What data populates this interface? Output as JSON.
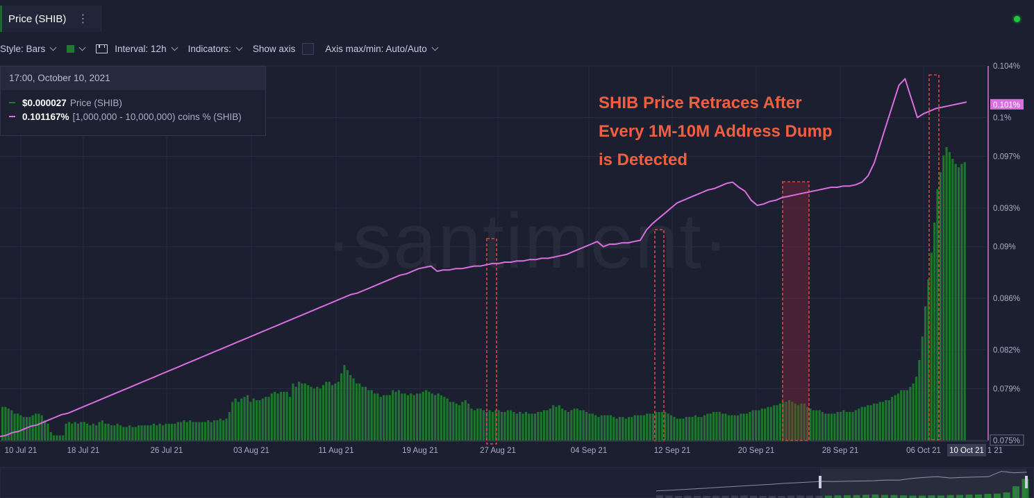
{
  "header": {
    "title": "Price (SHIB)",
    "menu_icon": "more-vertical-icon"
  },
  "toolbar": {
    "style_label": "Style: Bars",
    "interval_label": "Interval: 12h",
    "indicators_label": "Indicators:",
    "show_axis_label": "Show axis",
    "axis_label": "Axis max/min: Auto/Auto"
  },
  "tooltip": {
    "date": "17:00, October 10, 2021",
    "price_value": "$0.000027",
    "price_label": "Price (SHIB)",
    "holders_value": "0.101167%",
    "holders_label": "[1,000,000 - 10,000,000) coins % (SHIB)"
  },
  "annotation": {
    "line1": "SHIB Price Retraces After",
    "line2": "Every 1M-10M Address Dump",
    "line3": "is Detected"
  },
  "watermark": "·santiment·",
  "colors": {
    "background": "#1c1f30",
    "price_bars": "#1f7a2f",
    "holders_line": "#d96ee0",
    "annotation": "#f06040",
    "highlight_box": "#e0453a",
    "status": "#1ec93a"
  },
  "chart_data": {
    "type": "bar",
    "title": "Price (SHIB)",
    "x_tick_labels": [
      "10 Jul 21",
      "18 Jul 21",
      "26 Jul 21",
      "03 Aug 21",
      "11 Aug 21",
      "19 Aug 21",
      "27 Aug 21",
      "04 Sep 21",
      "12 Sep 21",
      "20 Sep 21",
      "28 Sep 21",
      "06 Oct 21",
      "10 Oct 21",
      "1 21"
    ],
    "right_axis": {
      "ticks": [
        "0.104%",
        "0.1%",
        "0.097%",
        "0.093%",
        "0.09%",
        "0.086%",
        "0.082%",
        "0.079%",
        "0.075%"
      ],
      "tick_values": [
        0.104,
        0.1,
        0.097,
        0.093,
        0.09,
        0.086,
        0.082,
        0.079,
        0.075
      ],
      "current_label": "0.101%",
      "current_value": 0.101,
      "ylim": [
        0.075,
        0.104
      ]
    },
    "grid": true,
    "series": [
      {
        "name": "Price (SHIB)",
        "type": "bar",
        "values": [
          20,
          20,
          19,
          18,
          16,
          16,
          15,
          14,
          14,
          14,
          15,
          16,
          16,
          15,
          12,
          10,
          5,
          3,
          3,
          3,
          3,
          10,
          11,
          10,
          11,
          10,
          11,
          11,
          10,
          9,
          10,
          9,
          11,
          12,
          10,
          10,
          9,
          9,
          10,
          9,
          8,
          8,
          9,
          8,
          8,
          9,
          9,
          9,
          9,
          9,
          10,
          9,
          10,
          9,
          10,
          10,
          10,
          10,
          11,
          11,
          12,
          11,
          12,
          11,
          11,
          11,
          11,
          11,
          12,
          11,
          12,
          12,
          13,
          12,
          13,
          17,
          23,
          25,
          23,
          25,
          26,
          27,
          23,
          25,
          24,
          24,
          25,
          26,
          26,
          28,
          29,
          28,
          29,
          29,
          29,
          26,
          34,
          32,
          35,
          34,
          34,
          33,
          32,
          31,
          32,
          31,
          33,
          35,
          35,
          33,
          34,
          35,
          40,
          45,
          42,
          39,
          37,
          34,
          34,
          32,
          32,
          30,
          30,
          28,
          28,
          26,
          27,
          27,
          27,
          30,
          29,
          30,
          28,
          28,
          27,
          28,
          27,
          28,
          28,
          29,
          30,
          29,
          28,
          27,
          28,
          27,
          26,
          25,
          23,
          23,
          22,
          21,
          23,
          24,
          22,
          19,
          18,
          19,
          19,
          18,
          17,
          18,
          17,
          18,
          18,
          17,
          17,
          18,
          18,
          17,
          16,
          17,
          16,
          17,
          16,
          16,
          16,
          17,
          17,
          18,
          18,
          19,
          21,
          20,
          21,
          19,
          18,
          17,
          18,
          19,
          19,
          18,
          18,
          17,
          16,
          16,
          15,
          14,
          15,
          15,
          15,
          15,
          14,
          13,
          14,
          14,
          13,
          14,
          14,
          15,
          15,
          15,
          15,
          16,
          16,
          16,
          17,
          17,
          17,
          17,
          16,
          15,
          14,
          13,
          13,
          13,
          14,
          14,
          14,
          15,
          14,
          14,
          15,
          16,
          16,
          17,
          17,
          17,
          16,
          16,
          15,
          15,
          15,
          15,
          16,
          16,
          16,
          17,
          18,
          18,
          18,
          19,
          19,
          20,
          20,
          21,
          21,
          22,
          23,
          23,
          24,
          23,
          22,
          21,
          22,
          22,
          20,
          19,
          18,
          18,
          18,
          17,
          16,
          16,
          16,
          16,
          17,
          17,
          18,
          17,
          17,
          17,
          18,
          19,
          20,
          20,
          21,
          21,
          22,
          22,
          23,
          23,
          24,
          24,
          26,
          27,
          28,
          30,
          30,
          30,
          32,
          34,
          38,
          48,
          62,
          80,
          96,
          112,
          130,
          150,
          160,
          170,
          175,
          172,
          168,
          165,
          163,
          165,
          166
        ]
      },
      {
        "name": "[1,000,000 - 10,000,000) coins % (SHIB)",
        "type": "line",
        "values": [
          0.0753,
          0.0754,
          0.0756,
          0.0757,
          0.0759,
          0.0761,
          0.0762,
          0.0764,
          0.0766,
          0.0768,
          0.077,
          0.0771,
          0.0773,
          0.0775,
          0.0777,
          0.0779,
          0.0781,
          0.0783,
          0.0785,
          0.0787,
          0.0789,
          0.0791,
          0.0793,
          0.0795,
          0.0797,
          0.0799,
          0.0801,
          0.0803,
          0.0805,
          0.0807,
          0.0809,
          0.0811,
          0.0813,
          0.0815,
          0.0817,
          0.0819,
          0.0821,
          0.0823,
          0.0825,
          0.0827,
          0.0829,
          0.0831,
          0.0833,
          0.0835,
          0.0837,
          0.0839,
          0.0841,
          0.0843,
          0.0845,
          0.0847,
          0.0849,
          0.0851,
          0.0853,
          0.0855,
          0.0857,
          0.0859,
          0.0861,
          0.0863,
          0.0864,
          0.0866,
          0.0868,
          0.087,
          0.0872,
          0.0874,
          0.0876,
          0.0878,
          0.0879,
          0.0881,
          0.0883,
          0.0884,
          0.0885,
          0.0881,
          0.0882,
          0.0882,
          0.0883,
          0.0883,
          0.0884,
          0.0885,
          0.0885,
          0.0886,
          0.0887,
          0.0887,
          0.0888,
          0.0888,
          0.0889,
          0.0889,
          0.089,
          0.089,
          0.0891,
          0.0891,
          0.0892,
          0.0893,
          0.0894,
          0.0896,
          0.0898,
          0.09,
          0.0902,
          0.0904,
          0.09,
          0.0902,
          0.0902,
          0.0903,
          0.0903,
          0.0904,
          0.0905,
          0.0913,
          0.0918,
          0.0922,
          0.0926,
          0.093,
          0.0934,
          0.0936,
          0.0938,
          0.094,
          0.0942,
          0.0944,
          0.0945,
          0.0947,
          0.0949,
          0.095,
          0.0946,
          0.0943,
          0.0936,
          0.0932,
          0.0933,
          0.0935,
          0.0936,
          0.0938,
          0.0939,
          0.094,
          0.0941,
          0.0942,
          0.0943,
          0.0944,
          0.0945,
          0.0946,
          0.0946,
          0.0947,
          0.0947,
          0.0948,
          0.095,
          0.0955,
          0.0965,
          0.098,
          0.0995,
          0.101,
          0.1025,
          0.103,
          0.1015,
          0.1,
          0.1003,
          0.1005,
          0.1007,
          0.1008,
          0.1009,
          0.101,
          0.1011,
          0.1012
        ]
      }
    ],
    "highlight_windows": [
      "27 Aug 21",
      "12 Sep 21",
      "24 Sep 21",
      "08 Oct 21"
    ]
  }
}
